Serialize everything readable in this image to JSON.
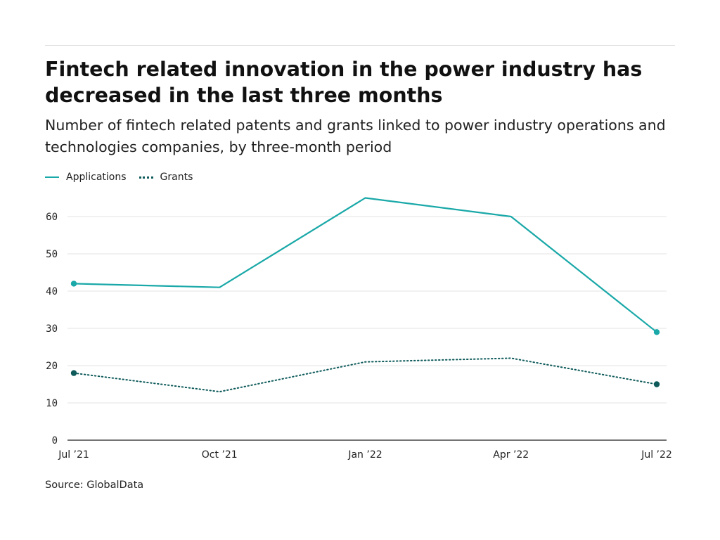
{
  "header": {
    "title": "Fintech related innovation in the power industry has decreased in the last three months",
    "subtitle": "Number of fintech related patents and grants linked to power industry operations and technologies companies, by three-month period"
  },
  "footer": {
    "source": "Source: GlobalData"
  },
  "chart_data": {
    "type": "line",
    "title": "Fintech related innovation in the power industry has decreased in the last three months",
    "subtitle": "Number of fintech related patents and grants linked to power industry operations and technologies companies, by three-month period",
    "categories": [
      "Jul ’21",
      "Oct ’21",
      "Jan ’22",
      "Apr ’22",
      "Jul ’22"
    ],
    "series": [
      {
        "name": "Applications",
        "values": [
          42,
          41,
          65,
          60,
          29
        ],
        "color": "#1aa8a8",
        "style": "solid"
      },
      {
        "name": "Grants",
        "values": [
          18,
          13,
          21,
          22,
          15
        ],
        "color": "#0f5a5a",
        "style": "dotted"
      }
    ],
    "ylim": [
      0,
      70
    ],
    "yticks": [
      0,
      10,
      20,
      30,
      40,
      50,
      60
    ],
    "grid": true,
    "legend": "top-left",
    "xlabel": "",
    "ylabel": ""
  }
}
